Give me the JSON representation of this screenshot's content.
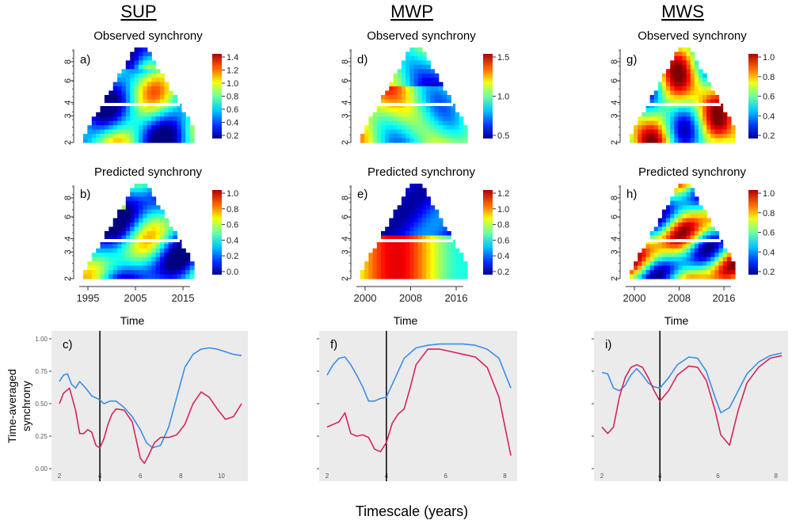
{
  "columns": [
    {
      "title": "SUP",
      "observed": {
        "label": "Observed synchrony",
        "letter": "a)",
        "colorbar_ticks": [
          "1.4",
          "1.2",
          "1.0",
          "0.8",
          "0.6",
          "0.4",
          "0.2"
        ]
      },
      "predicted": {
        "label": "Predicted synchrony",
        "letter": "b)",
        "colorbar_ticks": [
          "1.0",
          "0.8",
          "0.6",
          "0.4",
          "0.2",
          "0.0"
        ]
      },
      "x_ticks": [
        "1995",
        "2005",
        "2015"
      ],
      "x_label": "Time",
      "y_ticks": [
        "2",
        "3",
        "4",
        "6",
        "8"
      ]
    },
    {
      "title": "MWP",
      "observed": {
        "label": "Observed synchrony",
        "letter": "d)",
        "colorbar_ticks": [
          "1.5",
          "1.0",
          "0.5"
        ]
      },
      "predicted": {
        "label": "Predicted synchrony",
        "letter": "e)",
        "colorbar_ticks": [
          "1.2",
          "1.0",
          "0.8",
          "0.6",
          "0.4",
          "0.2"
        ]
      },
      "x_ticks": [
        "2000",
        "2008",
        "2016"
      ],
      "x_label": "Time",
      "y_ticks": [
        "2",
        "3",
        "4",
        "6",
        "8"
      ]
    },
    {
      "title": "MWS",
      "observed": {
        "label": "Observed synchrony",
        "letter": "g)",
        "colorbar_ticks": [
          "1.0",
          "0.8",
          "0.6",
          "0.4",
          "0.2"
        ]
      },
      "predicted": {
        "label": "Predicted synchrony",
        "letter": "h)",
        "colorbar_ticks": [
          "1.0",
          "0.8",
          "0.6",
          "0.4",
          "0.2"
        ]
      },
      "x_ticks": [
        "2000",
        "2008",
        "2016"
      ],
      "x_label": "Time",
      "y_ticks": [
        "2",
        "3",
        "4",
        "6",
        "8"
      ]
    }
  ],
  "bottom": {
    "y_label_line1": "Time-averaged",
    "y_label_line2": "synchrony",
    "x_label": "Timescale (years)"
  },
  "colors": {
    "blue_series": "#3a8ee6",
    "red_series": "#d6245a",
    "panel_bg": "#ebebeb"
  },
  "chart_data": [
    {
      "type": "line",
      "panel": "c)",
      "xlim": [
        2,
        11
      ],
      "ylim": [
        0,
        1.0
      ],
      "x_ticks": [
        "2",
        "4",
        "6",
        "8",
        "10"
      ],
      "y_ticks": [
        "0.00",
        "0.25",
        "0.50",
        "0.75",
        "1.00"
      ],
      "vline_x": 4,
      "series": [
        {
          "name": "blue",
          "x": [
            2,
            2.2,
            2.4,
            2.6,
            2.8,
            3,
            3.3,
            3.6,
            4,
            4.2,
            4.5,
            4.8,
            5.2,
            5.6,
            6,
            6.3,
            6.6,
            7,
            7.4,
            7.8,
            8.2,
            8.6,
            9,
            9.4,
            9.8,
            10.2,
            10.6,
            11
          ],
          "y": [
            0.67,
            0.72,
            0.73,
            0.65,
            0.62,
            0.67,
            0.62,
            0.56,
            0.53,
            0.5,
            0.52,
            0.52,
            0.47,
            0.4,
            0.3,
            0.2,
            0.16,
            0.18,
            0.32,
            0.55,
            0.78,
            0.88,
            0.92,
            0.93,
            0.92,
            0.9,
            0.88,
            0.87
          ]
        },
        {
          "name": "red",
          "x": [
            2,
            2.2,
            2.5,
            2.8,
            3,
            3.2,
            3.4,
            3.6,
            3.8,
            4,
            4.2,
            4.4,
            4.6,
            4.8,
            5.2,
            5.6,
            6,
            6.2,
            6.4,
            6.7,
            7,
            7.4,
            7.8,
            8.2,
            8.6,
            9,
            9.4,
            9.8,
            10.2,
            10.6,
            11
          ],
          "y": [
            0.5,
            0.58,
            0.62,
            0.45,
            0.27,
            0.27,
            0.3,
            0.28,
            0.18,
            0.16,
            0.23,
            0.34,
            0.42,
            0.46,
            0.45,
            0.36,
            0.08,
            0.04,
            0.1,
            0.2,
            0.24,
            0.24,
            0.26,
            0.34,
            0.5,
            0.59,
            0.55,
            0.46,
            0.38,
            0.4,
            0.5
          ]
        }
      ]
    },
    {
      "type": "line",
      "panel": "f)",
      "xlim": [
        2,
        8.2
      ],
      "ylim": [
        0,
        1.0
      ],
      "x_ticks": [
        "2",
        "4",
        "6",
        "8"
      ],
      "vline_x": 4,
      "series": [
        {
          "name": "blue",
          "x": [
            2,
            2.2,
            2.4,
            2.6,
            2.8,
            3,
            3.2,
            3.4,
            3.6,
            3.8,
            4,
            4.3,
            4.6,
            5,
            5.4,
            5.8,
            6.2,
            6.6,
            7,
            7.4,
            7.8,
            8.2
          ],
          "y": [
            0.72,
            0.8,
            0.85,
            0.86,
            0.8,
            0.72,
            0.63,
            0.52,
            0.52,
            0.54,
            0.55,
            0.7,
            0.85,
            0.93,
            0.95,
            0.96,
            0.96,
            0.96,
            0.95,
            0.92,
            0.85,
            0.62
          ]
        },
        {
          "name": "red",
          "x": [
            2,
            2.2,
            2.4,
            2.6,
            2.8,
            3,
            3.2,
            3.4,
            3.6,
            3.8,
            4,
            4.2,
            4.4,
            4.6,
            4.8,
            5,
            5.4,
            5.8,
            6.2,
            6.6,
            7,
            7.4,
            7.8,
            8.2
          ],
          "y": [
            0.32,
            0.34,
            0.36,
            0.43,
            0.27,
            0.25,
            0.26,
            0.24,
            0.15,
            0.13,
            0.2,
            0.35,
            0.42,
            0.46,
            0.62,
            0.8,
            0.92,
            0.92,
            0.9,
            0.88,
            0.86,
            0.78,
            0.55,
            0.1
          ]
        }
      ]
    },
    {
      "type": "line",
      "panel": "i)",
      "xlim": [
        2,
        8.2
      ],
      "ylim": [
        0,
        1.0
      ],
      "x_ticks": [
        "2",
        "4",
        "6",
        "8"
      ],
      "vline_x": 4,
      "series": [
        {
          "name": "blue",
          "x": [
            2,
            2.2,
            2.4,
            2.6,
            2.8,
            3,
            3.2,
            3.4,
            3.6,
            3.8,
            4,
            4.3,
            4.6,
            5,
            5.3,
            5.6,
            5.9,
            6.1,
            6.4,
            6.7,
            7,
            7.4,
            7.8,
            8.2
          ],
          "y": [
            0.74,
            0.73,
            0.62,
            0.6,
            0.64,
            0.72,
            0.77,
            0.72,
            0.66,
            0.63,
            0.62,
            0.7,
            0.8,
            0.86,
            0.85,
            0.75,
            0.55,
            0.43,
            0.47,
            0.6,
            0.73,
            0.82,
            0.87,
            0.89
          ]
        },
        {
          "name": "red",
          "x": [
            2,
            2.2,
            2.4,
            2.6,
            2.8,
            3,
            3.2,
            3.4,
            3.6,
            3.8,
            4,
            4.3,
            4.6,
            5,
            5.3,
            5.6,
            5.9,
            6.1,
            6.4,
            6.7,
            7,
            7.4,
            7.8,
            8.2
          ],
          "y": [
            0.32,
            0.27,
            0.32,
            0.55,
            0.7,
            0.78,
            0.8,
            0.78,
            0.7,
            0.6,
            0.52,
            0.6,
            0.72,
            0.79,
            0.78,
            0.68,
            0.45,
            0.26,
            0.18,
            0.45,
            0.66,
            0.78,
            0.85,
            0.87
          ]
        }
      ]
    }
  ]
}
